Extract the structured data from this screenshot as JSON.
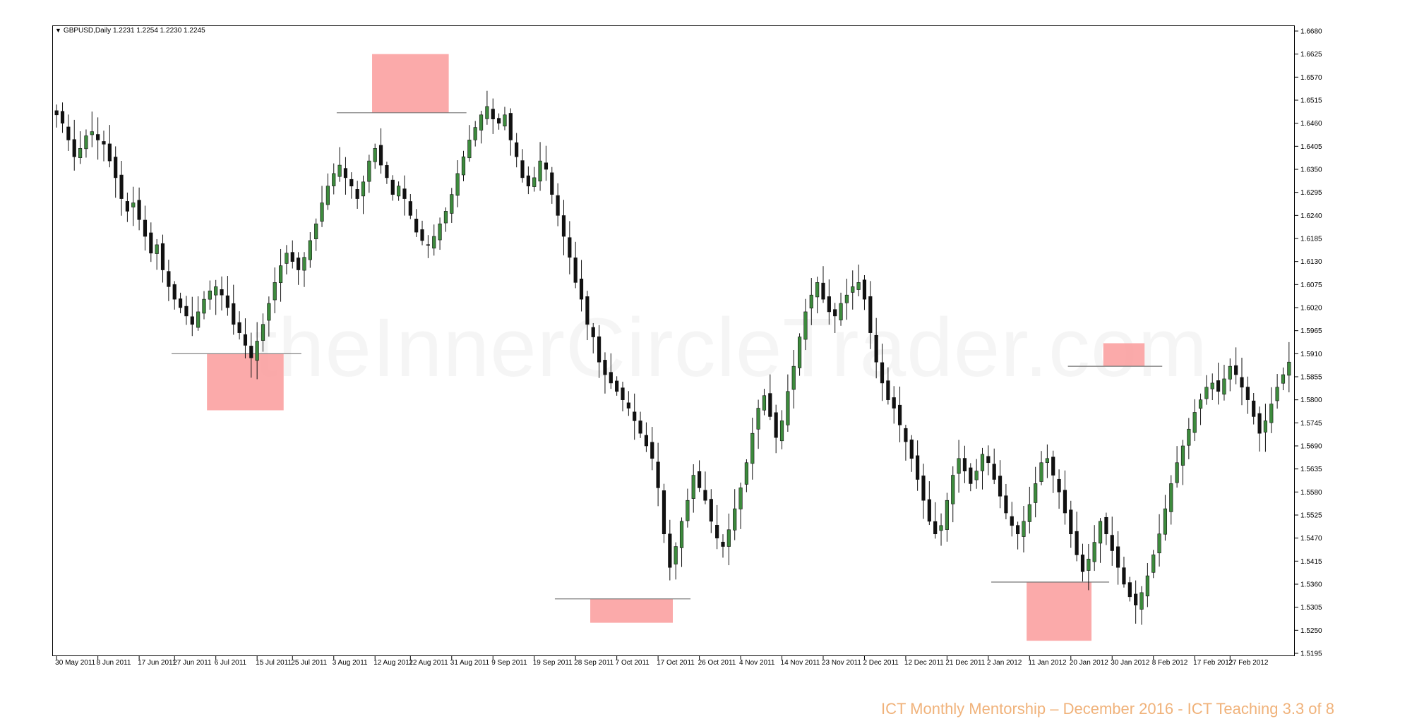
{
  "chart_header": {
    "symbol": "GBPUSD,Daily",
    "ohlc": "1.2231 1.2254 1.2230 1.2245"
  },
  "watermark": "theInnerCircleTrader.com",
  "footer": "ICT Monthly Mentorship – December 2016 - ICT Teaching 3.3 of 8",
  "chart_data": {
    "type": "candlestick",
    "title": "",
    "ylim": [
      1.5195,
      1.668
    ],
    "y_ticks": [
      "1.6680",
      "1.6625",
      "1.6570",
      "1.6515",
      "1.6460",
      "1.6405",
      "1.6350",
      "1.6295",
      "1.6240",
      "1.6185",
      "1.6130",
      "1.6075",
      "1.6020",
      "1.5965",
      "1.5910",
      "1.5855",
      "1.5800",
      "1.5745",
      "1.5690",
      "1.5635",
      "1.5580",
      "1.5525",
      "1.5470",
      "1.5415",
      "1.5360",
      "1.5305",
      "1.5250",
      "1.5195"
    ],
    "x_ticks": [
      {
        "label": "30 May 2011",
        "i": 0
      },
      {
        "label": "8 Jun 2011",
        "i": 7
      },
      {
        "label": "17 Jun 2011",
        "i": 14
      },
      {
        "label": "27 Jun 2011",
        "i": 20
      },
      {
        "label": "6 Jul 2011",
        "i": 27
      },
      {
        "label": "15 Jul 2011",
        "i": 34
      },
      {
        "label": "25 Jul 2011",
        "i": 40
      },
      {
        "label": "3 Aug 2011",
        "i": 47
      },
      {
        "label": "12 Aug 2011",
        "i": 54
      },
      {
        "label": "22 Aug 2011",
        "i": 60
      },
      {
        "label": "31 Aug 2011",
        "i": 67
      },
      {
        "label": "9 Sep 2011",
        "i": 74
      },
      {
        "label": "19 Sep 2011",
        "i": 81
      },
      {
        "label": "28 Sep 2011",
        "i": 88
      },
      {
        "label": "7 Oct 2011",
        "i": 95
      },
      {
        "label": "17 Oct 2011",
        "i": 102
      },
      {
        "label": "26 Oct 2011",
        "i": 109
      },
      {
        "label": "4 Nov 2011",
        "i": 116
      },
      {
        "label": "14 Nov 2011",
        "i": 123
      },
      {
        "label": "23 Nov 2011",
        "i": 130
      },
      {
        "label": "2 Dec 2011",
        "i": 137
      },
      {
        "label": "12 Dec 2011",
        "i": 144
      },
      {
        "label": "21 Dec 2011",
        "i": 151
      },
      {
        "label": "2 Jan 2012",
        "i": 158
      },
      {
        "label": "11 Jan 2012",
        "i": 165
      },
      {
        "label": "20 Jan 2012",
        "i": 172
      },
      {
        "label": "30 Jan 2012",
        "i": 179
      },
      {
        "label": "8 Feb 2012",
        "i": 186
      },
      {
        "label": "17 Feb 2012",
        "i": 193
      },
      {
        "label": "27 Feb 2012",
        "i": 199
      }
    ],
    "closes": [
      1.648,
      1.646,
      1.642,
      1.638,
      1.64,
      1.643,
      1.644,
      1.642,
      1.641,
      1.637,
      1.633,
      1.628,
      1.625,
      1.627,
      1.623,
      1.619,
      1.615,
      1.617,
      1.611,
      1.607,
      1.604,
      1.602,
      1.6,
      1.598,
      1.601,
      1.604,
      1.606,
      1.607,
      1.605,
      1.602,
      1.598,
      1.596,
      1.593,
      1.59,
      1.594,
      1.598,
      1.603,
      1.608,
      1.612,
      1.615,
      1.613,
      1.611,
      1.614,
      1.618,
      1.622,
      1.627,
      1.631,
      1.634,
      1.636,
      1.633,
      1.631,
      1.628,
      1.632,
      1.637,
      1.64,
      1.636,
      1.633,
      1.629,
      1.631,
      1.628,
      1.624,
      1.62,
      1.618,
      1.617,
      1.619,
      1.622,
      1.625,
      1.629,
      1.634,
      1.638,
      1.642,
      1.645,
      1.648,
      1.65,
      1.647,
      1.646,
      1.648,
      1.642,
      1.638,
      1.633,
      1.631,
      1.633,
      1.637,
      1.635,
      1.629,
      1.624,
      1.619,
      1.614,
      1.608,
      1.604,
      1.598,
      1.595,
      1.589,
      1.586,
      1.584,
      1.582,
      1.58,
      1.578,
      1.575,
      1.572,
      1.569,
      1.566,
      1.559,
      1.548,
      1.54,
      1.545,
      1.551,
      1.556,
      1.562,
      1.559,
      1.556,
      1.551,
      1.547,
      1.545,
      1.549,
      1.554,
      1.559,
      1.565,
      1.572,
      1.578,
      1.581,
      1.576,
      1.571,
      1.575,
      1.582,
      1.588,
      1.595,
      1.601,
      1.605,
      1.608,
      1.604,
      1.601,
      1.6,
      1.603,
      1.605,
      1.607,
      1.608,
      1.604,
      1.596,
      1.589,
      1.584,
      1.58,
      1.578,
      1.574,
      1.57,
      1.566,
      1.561,
      1.556,
      1.551,
      1.548,
      1.55,
      1.556,
      1.562,
      1.566,
      1.563,
      1.56,
      1.563,
      1.567,
      1.565,
      1.561,
      1.557,
      1.553,
      1.55,
      1.548,
      1.551,
      1.555,
      1.56,
      1.565,
      1.566,
      1.562,
      1.558,
      1.553,
      1.548,
      1.543,
      1.539,
      1.542,
      1.546,
      1.551,
      1.548,
      1.544,
      1.54,
      1.536,
      1.533,
      1.531,
      1.534,
      1.538,
      1.543,
      1.548,
      1.554,
      1.56,
      1.565,
      1.569,
      1.573,
      1.577,
      1.58,
      1.583,
      1.584,
      1.582,
      1.585,
      1.588,
      1.586,
      1.583,
      1.58,
      1.576,
      1.572,
      1.575,
      1.579,
      1.583,
      1.586,
      1.589
    ],
    "zones": [
      {
        "kind": "low",
        "from": 26,
        "to": 38,
        "level": 1.591,
        "bottom": 1.5775,
        "top": 1.591
      },
      {
        "kind": "high",
        "from": 54,
        "to": 66,
        "level": 1.6485,
        "bottom": 1.6485,
        "top": 1.6625
      },
      {
        "kind": "low",
        "from": 91,
        "to": 104,
        "level": 1.5325,
        "bottom": 1.5268,
        "top": 1.5325
      },
      {
        "kind": "low",
        "from": 165,
        "to": 175,
        "level": 1.5365,
        "bottom": 1.5225,
        "top": 1.5365
      },
      {
        "kind": "high",
        "from": 178,
        "to": 184,
        "level": 1.588,
        "bottom": 1.588,
        "top": 1.5935
      }
    ],
    "colors": {
      "up": "#3d8b3d",
      "down": "#111111",
      "zone": "#fa9b9b",
      "frame": "#000000"
    }
  }
}
